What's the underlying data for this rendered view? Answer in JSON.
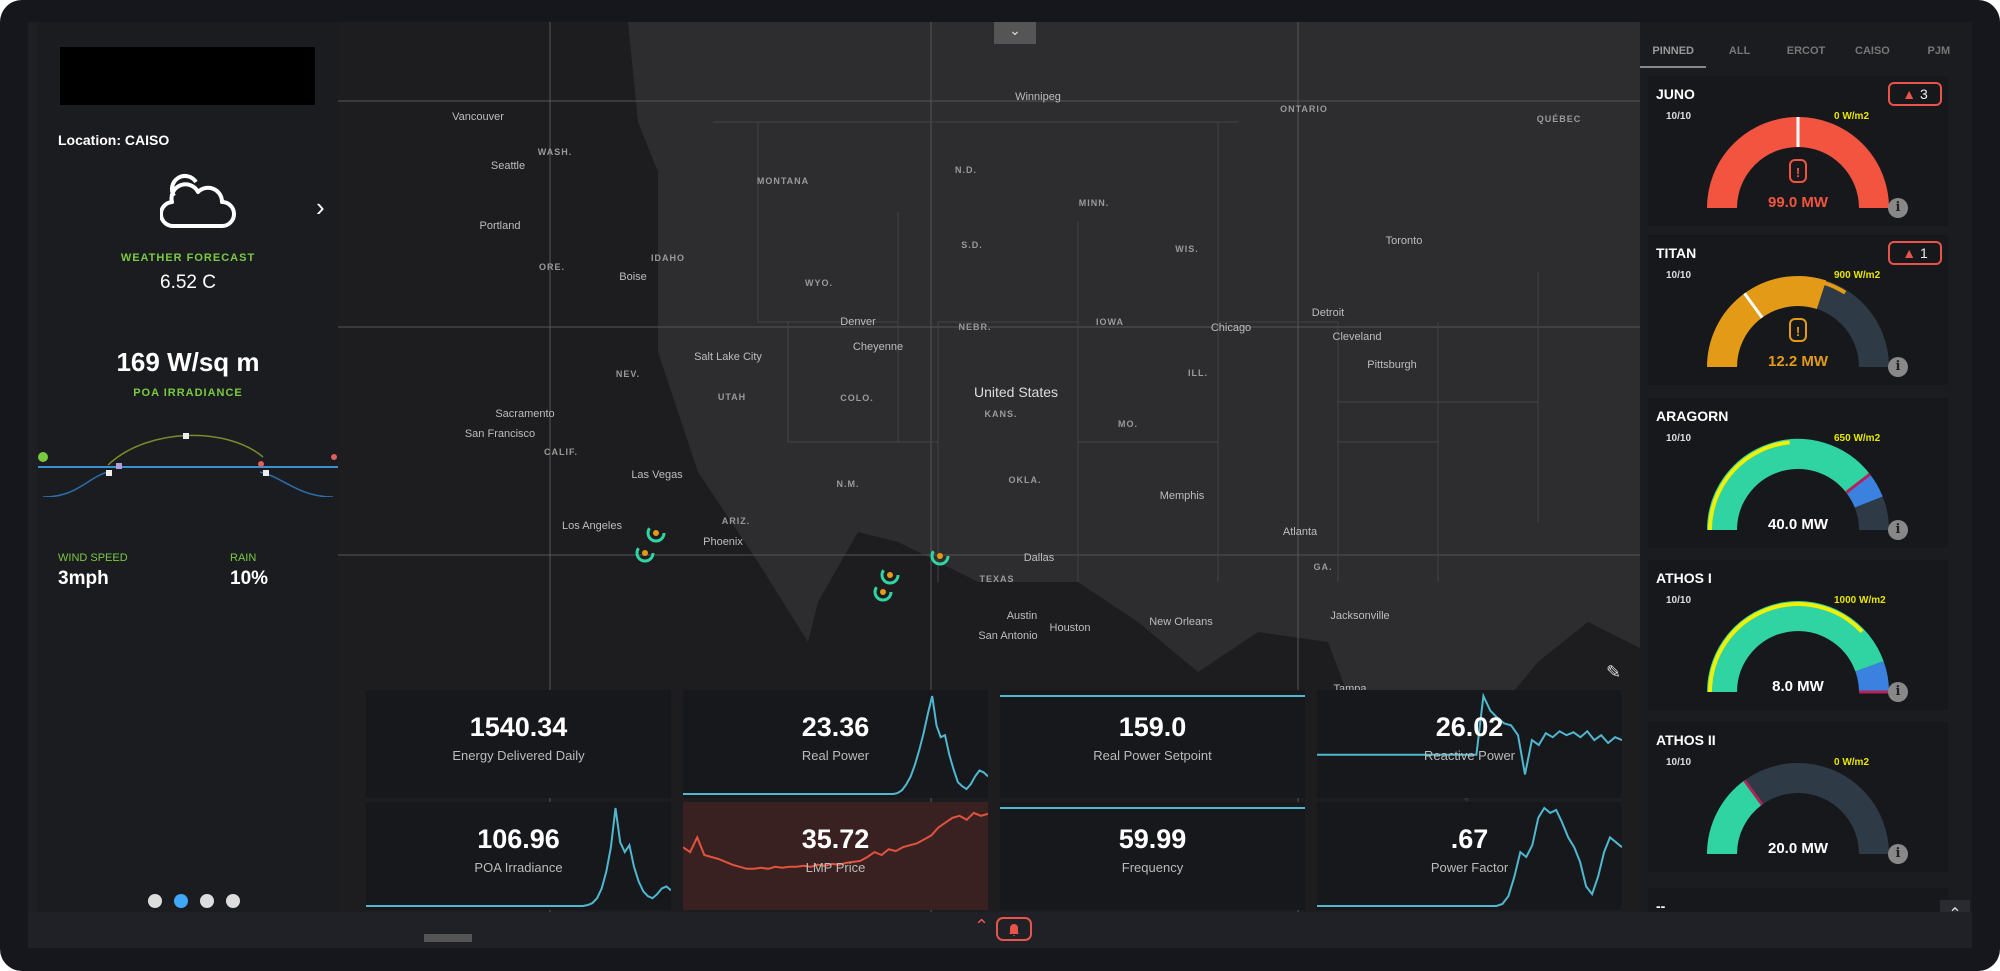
{
  "left_panel": {
    "location": "Location: CAISO",
    "weather_icon": "cloud-sun-icon",
    "forecast_label": "WEATHER FORECAST",
    "temperature": "6.52 C",
    "irradiance_value": "169 W/sq m",
    "irradiance_label": "POA IRRADIANCE",
    "wind_label": "WIND SPEED",
    "wind_value": "3mph",
    "rain_label": "RAIN",
    "rain_value": "10%",
    "carousel_active_index": 1,
    "carousel_count": 4
  },
  "map": {
    "labels": [
      "United States",
      "TEXAS",
      "Los Angeles",
      "San Francisco",
      "Sacramento",
      "Las Vegas",
      "Phoenix",
      "Dallas",
      "Houston",
      "Chicago",
      "Toronto",
      "Detroit",
      "New Orleans",
      "Atlanta",
      "Seattle",
      "Portland",
      "MONTANA",
      "CALIF.",
      "NEV.",
      "UTAH",
      "ARIZ.",
      "N.M.",
      "COLO.",
      "KANS.",
      "OKLA.",
      "IOWA",
      "MINN.",
      "WIS.",
      "ONTARIO",
      "QUÉBEC",
      "ILL.",
      "MO.",
      "GA.",
      "Jacksonville",
      "Tampa",
      "San Antonio",
      "Austin",
      "Memphis",
      "Cleveland",
      "Pittsburgh",
      "N.D.",
      "S.D.",
      "NEBR.",
      "WYO.",
      "IDAHO",
      "ORE.",
      "WASH.",
      "Cheyenne",
      "Salt Lake City",
      "Winnipeg",
      "Vancouver",
      "Boise",
      "Denver"
    ]
  },
  "tiles": [
    {
      "value": "1540.34",
      "label": "Energy Delivered Daily",
      "spark": []
    },
    {
      "value": "23.36",
      "label": "Real Power",
      "spark": [
        0,
        0,
        0,
        0,
        0,
        0,
        0,
        0,
        0,
        0,
        0,
        0,
        0,
        0,
        0,
        0,
        0,
        0,
        0,
        0,
        0,
        0,
        0,
        0,
        0,
        0,
        0,
        0,
        0,
        0,
        0,
        0,
        0,
        0,
        0,
        0,
        0,
        0,
        0,
        0,
        0,
        0,
        0,
        0,
        0,
        0,
        0,
        0,
        0,
        0,
        1,
        4,
        10,
        18,
        30,
        45,
        62,
        82,
        100,
        70,
        58,
        60,
        40,
        25,
        12,
        8,
        5,
        10,
        18,
        24,
        22,
        18
      ]
    },
    {
      "value": "159.0",
      "label": "Real Power Setpoint",
      "spark": [
        100,
        100,
        100,
        100,
        100,
        100,
        100,
        100,
        100,
        100,
        100,
        100
      ]
    },
    {
      "value": "26.02",
      "label": "Reactive Power",
      "spark": [
        40,
        40,
        40,
        40,
        40,
        40,
        40,
        40,
        40,
        40,
        40,
        40,
        40,
        40,
        40,
        40,
        40,
        40,
        40,
        40,
        40,
        40,
        40,
        40,
        100,
        85,
        78,
        72,
        70,
        60,
        20,
        55,
        50,
        62,
        58,
        64,
        60,
        63,
        58,
        64,
        55,
        60,
        52,
        58,
        55
      ]
    },
    {
      "value": "106.96",
      "label": "POA Irradiance",
      "spark": [
        0,
        0,
        0,
        0,
        0,
        0,
        0,
        0,
        0,
        0,
        0,
        0,
        0,
        0,
        0,
        0,
        0,
        0,
        0,
        0,
        0,
        0,
        0,
        0,
        0,
        0,
        0,
        0,
        0,
        0,
        0,
        0,
        0,
        0,
        0,
        0,
        0,
        0,
        0,
        0,
        0,
        0,
        0,
        0,
        0,
        0,
        0,
        0,
        1,
        3,
        8,
        18,
        35,
        60,
        100,
        65,
        55,
        62,
        40,
        25,
        15,
        10,
        8,
        12,
        18,
        20,
        16
      ]
    },
    {
      "value": "35.72",
      "label": "LMP Price",
      "spark": [
        60,
        55,
        70,
        52,
        50,
        48,
        45,
        42,
        40,
        38,
        38,
        39,
        38,
        40,
        39,
        40,
        40,
        41,
        40,
        42,
        41,
        43,
        42,
        44,
        45,
        46,
        50,
        55,
        52,
        58,
        56,
        60,
        62,
        64,
        68,
        72,
        80,
        85,
        90,
        92,
        88,
        95,
        92,
        94
      ]
    },
    {
      "value": "59.99",
      "label": "Frequency",
      "spark": [
        100,
        100,
        100,
        100,
        100,
        100,
        100,
        100,
        100,
        100,
        100,
        100
      ]
    },
    {
      "value": ".67",
      "label": "Power Factor",
      "spark": [
        0,
        0,
        0,
        0,
        0,
        0,
        0,
        0,
        0,
        0,
        0,
        0,
        0,
        0,
        0,
        0,
        0,
        0,
        0,
        0,
        0,
        0,
        0,
        0,
        0,
        0,
        0,
        0,
        0,
        0,
        0,
        2,
        10,
        30,
        55,
        50,
        62,
        90,
        100,
        95,
        98,
        85,
        70,
        60,
        45,
        20,
        12,
        30,
        55,
        70,
        65,
        60
      ]
    }
  ],
  "right_panel": {
    "tabs": [
      "PINNED",
      "ALL",
      "ERCOT",
      "CAISO",
      "PJM"
    ],
    "active_tab": "PINNED",
    "cards": [
      {
        "name": "JUNO",
        "ratio": "10/10",
        "irradiance": "0 W/m2",
        "power": "99.0 MW",
        "alerts": "3",
        "color": "#f2543f",
        "fill": 1.0,
        "marker": 0.5,
        "outer": 0,
        "extra": 0,
        "warning": true
      },
      {
        "name": "TITAN",
        "ratio": "10/10",
        "irradiance": "900 W/m2",
        "power": "12.2 MW",
        "alerts": "1",
        "color": "#e39a17",
        "fill": 0.6,
        "marker": 0.3,
        "outer": 0.68,
        "extra": 0,
        "warning": true
      },
      {
        "name": "ARAGORN",
        "ratio": "10/10",
        "irradiance": "650 W/m2",
        "power": "40.0 MW",
        "alerts": "",
        "color": "#2fd4a2",
        "fill": 0.79,
        "marker": 0.79,
        "outer": 0.47,
        "extra": 0.09,
        "warning": false
      },
      {
        "name": "ATHOS I",
        "ratio": "10/10",
        "irradiance": "1000 W/m2",
        "power": "8.0 MW",
        "alerts": "",
        "color": "#2fd4a2",
        "fill": 0.89,
        "marker": 1.0,
        "outer": 0.76,
        "extra": 0.11,
        "warning": false
      },
      {
        "name": "ATHOS II",
        "ratio": "10/10",
        "irradiance": "0 W/m2",
        "power": "20.0 MW",
        "alerts": "",
        "color": "#2fd4a2",
        "fill": 0.3,
        "marker": 0.3,
        "outer": 0,
        "extra": 0,
        "warning": false
      }
    ],
    "partial_card_name": "--"
  },
  "colors": {
    "accent_green": "#7ac943",
    "alert_red": "#e8534a",
    "spark_blue": "#4fb7cf",
    "irradiance_yellow": "#e6e600"
  }
}
